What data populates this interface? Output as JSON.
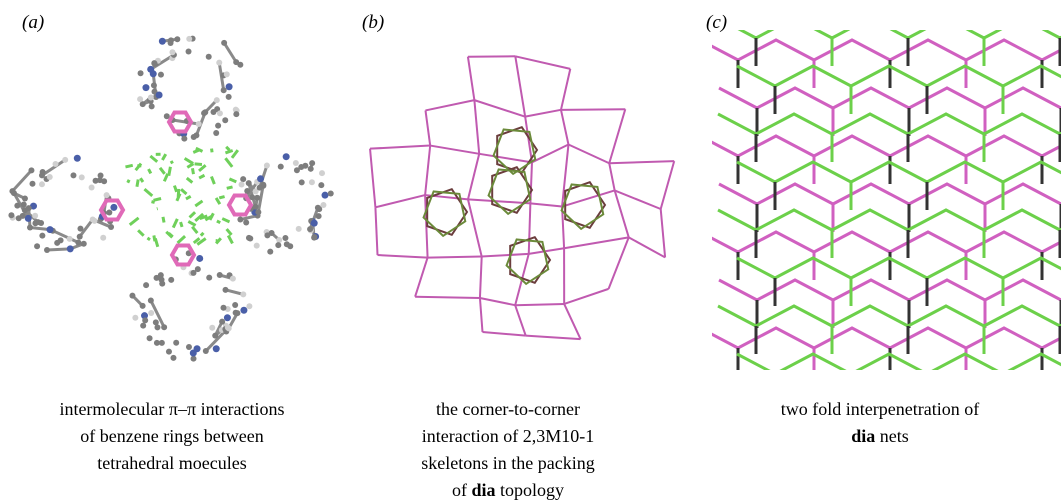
{
  "panels": [
    {
      "label": "(a)",
      "caption": [
        [
          {
            "text": "intermolecular π–π interactions"
          }
        ],
        [
          {
            "text": "of benzene rings between"
          }
        ],
        [
          {
            "text": "tetrahedral moecules"
          }
        ]
      ]
    },
    {
      "label": "(b)",
      "caption": [
        [
          {
            "text": "the corner-to-corner"
          }
        ],
        [
          {
            "text": "interaction of 2,3M10-1"
          }
        ],
        [
          {
            "text": "skeletons in the packing"
          }
        ],
        [
          {
            "text": "of "
          },
          {
            "text": "dia",
            "bold": true
          },
          {
            "text": " topology"
          }
        ]
      ]
    },
    {
      "label": "(c)",
      "caption": [
        [
          {
            "text": "two fold interpenetration of"
          }
        ],
        [
          {
            "text": "dia",
            "bold": true
          },
          {
            "text": " nets"
          }
        ]
      ]
    }
  ]
}
